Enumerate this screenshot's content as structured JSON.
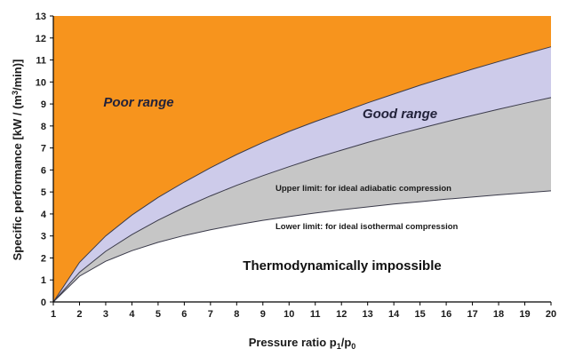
{
  "chart_data": {
    "type": "area",
    "title": "",
    "xlabel": "Pressure ratio p",
    "xlabel_sub1": "1",
    "xlabel_mid": "/p",
    "xlabel_sub0": "0",
    "ylabel": "Specific performance [kW / (m",
    "ylabel_sup": "3",
    "ylabel_end": "/min)]",
    "xlim": [
      1,
      20
    ],
    "ylim": [
      0,
      13
    ],
    "x_ticks": [
      1,
      2,
      3,
      4,
      5,
      6,
      7,
      8,
      9,
      10,
      11,
      12,
      13,
      14,
      15,
      16,
      17,
      18,
      19,
      20
    ],
    "y_ticks": [
      0,
      1,
      2,
      3,
      4,
      5,
      6,
      7,
      8,
      9,
      10,
      11,
      12,
      13
    ],
    "x": [
      1,
      2,
      3,
      4,
      5,
      6,
      7,
      8,
      9,
      10,
      11,
      12,
      13,
      14,
      15,
      16,
      17,
      18,
      19,
      20
    ],
    "series": [
      {
        "name": "Lower limit: for ideal isothermal compression",
        "values": [
          0,
          1.17,
          1.85,
          2.33,
          2.71,
          3.02,
          3.28,
          3.51,
          3.71,
          3.88,
          4.04,
          4.19,
          4.32,
          4.45,
          4.56,
          4.67,
          4.77,
          4.87,
          4.96,
          5.05
        ]
      },
      {
        "name": "Upper limit: for ideal adiabatic compression",
        "values": [
          0,
          1.35,
          2.3,
          3.06,
          3.72,
          4.3,
          4.82,
          5.3,
          5.74,
          6.15,
          6.54,
          6.9,
          7.25,
          7.58,
          7.89,
          8.19,
          8.48,
          8.76,
          9.03,
          9.29
        ]
      },
      {
        "name": "Good/Poor boundary",
        "values": [
          0,
          1.8,
          3.0,
          3.95,
          4.75,
          5.45,
          6.1,
          6.7,
          7.25,
          7.75,
          8.2,
          8.62,
          9.05,
          9.45,
          9.85,
          10.22,
          10.58,
          10.93,
          11.27,
          11.6
        ]
      }
    ],
    "regions": {
      "poor": {
        "label": "Poor range",
        "color": "#f7941d"
      },
      "good": {
        "label": "Good range",
        "color": "#cdcbea"
      },
      "between": {
        "color": "#c6c6c6"
      },
      "impossible": {
        "label": "Thermodynamically impossible",
        "color": "#ffffff"
      }
    },
    "annotations": {
      "upper": "Upper limit: for ideal adiabatic compression",
      "lower": "Lower limit: for ideal isothermal compression"
    },
    "line_color": "#3a3a4a"
  }
}
